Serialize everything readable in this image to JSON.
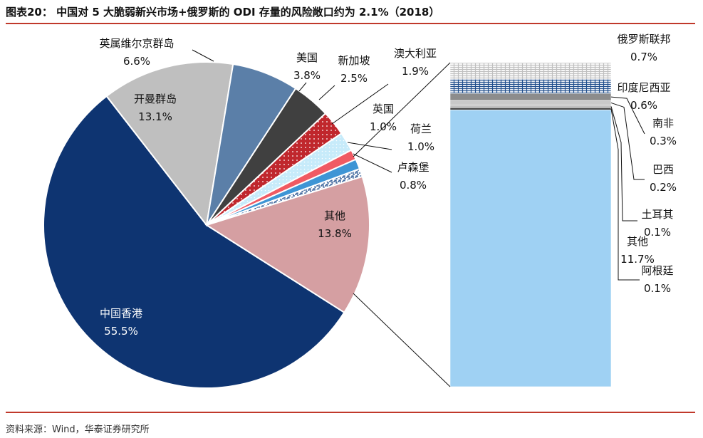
{
  "header": {
    "title": "图表20： 中国对 5 大脆弱新兴市场+俄罗斯的 ODI 存量的风险敞口约为 2.1%（2018）"
  },
  "footer": {
    "source": "资料来源：Wind，华泰证券研究所"
  },
  "chart_data": [
    {
      "type": "pie",
      "slices": [
        {
          "label": "中国香港",
          "value": 55.5,
          "value_label": "55.5%",
          "color": "#0e3471"
        },
        {
          "label": "开曼群岛",
          "value": 13.1,
          "value_label": "13.1%",
          "color": "#bfbfbf"
        },
        {
          "label": "英属维尔京群岛",
          "value": 6.6,
          "value_label": "6.6%",
          "color": "#5b7fa8"
        },
        {
          "label": "美国",
          "value": 3.8,
          "value_label": "3.8%",
          "color": "#404040"
        },
        {
          "label": "新加坡",
          "value": 2.5,
          "value_label": "2.5%",
          "color": "#c0272d"
        },
        {
          "label": "澳大利亚",
          "value": 1.9,
          "value_label": "1.9%",
          "color": "#bfe6f7"
        },
        {
          "label": "英国",
          "value": 1.0,
          "value_label": "1.0%",
          "color": "#f05a63"
        },
        {
          "label": "荷兰",
          "value": 1.0,
          "value_label": "1.0%",
          "color": "#3e95d5"
        },
        {
          "label": "卢森堡",
          "value": 0.8,
          "value_label": "0.8%",
          "color": "#1f4e8c"
        },
        {
          "label": "其他",
          "value": 13.8,
          "value_label": "13.8%",
          "color": "#d59fa2"
        }
      ]
    },
    {
      "type": "bar",
      "stacked": true,
      "segments": [
        {
          "label": "俄罗斯联邦",
          "value": 0.7,
          "value_label": "0.7%",
          "color": "#bfbfbf"
        },
        {
          "label": "印度尼西亚",
          "value": 0.6,
          "value_label": "0.6%",
          "color": "#1f4e8c"
        },
        {
          "label": "南非",
          "value": 0.3,
          "value_label": "0.3%",
          "color": "#8c8c8c"
        },
        {
          "label": "巴西",
          "value": 0.2,
          "value_label": "0.2%",
          "color": "#c9c9c9"
        },
        {
          "label": "土耳其",
          "value": 0.1,
          "value_label": "0.1%",
          "color": "#bfbfbf"
        },
        {
          "label": "阿根廷",
          "value": 0.1,
          "value_label": "0.1%",
          "color": "#4a4a4a"
        },
        {
          "label": "其他",
          "value": 11.7,
          "value_label": "11.7%",
          "color": "#9fd1f3"
        }
      ]
    }
  ]
}
